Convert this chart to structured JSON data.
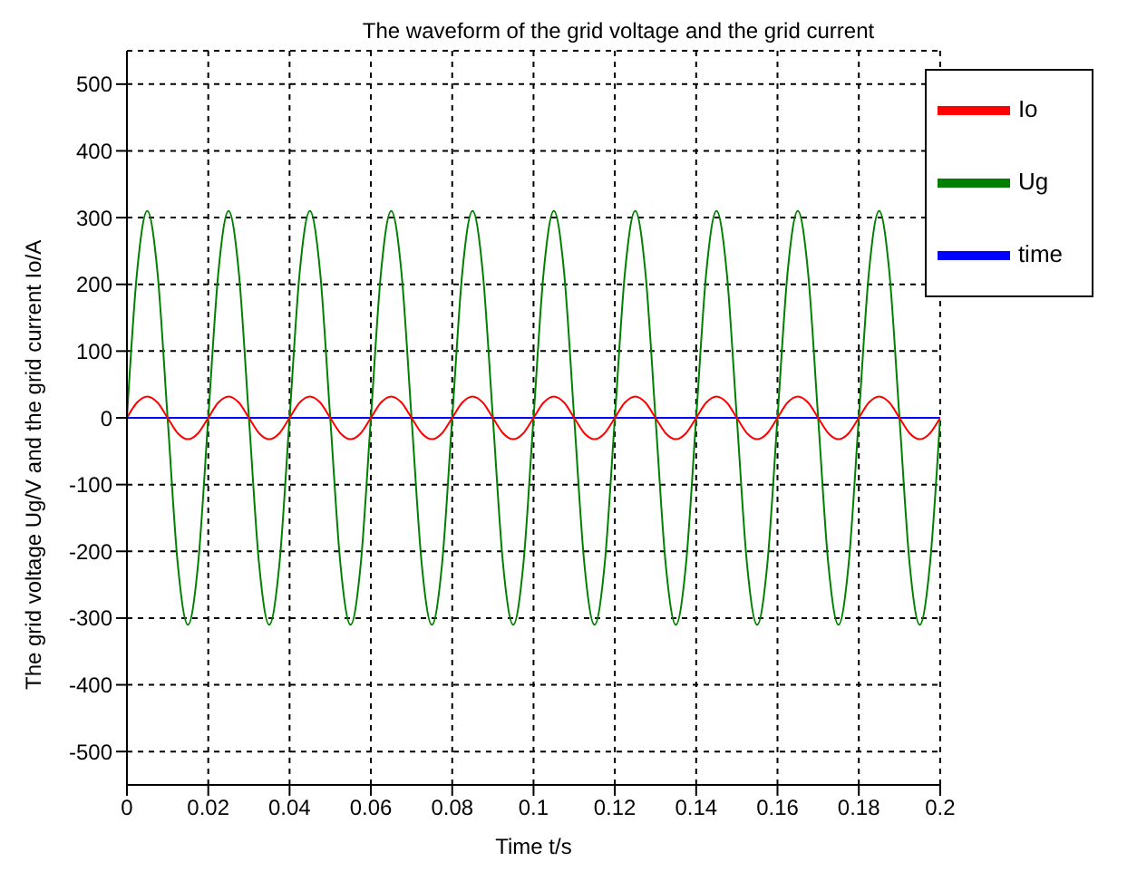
{
  "chart_data": {
    "type": "line",
    "title": "The waveform of the grid voltage and the grid current",
    "xlabel": "Time  t/s",
    "ylabel": "The grid voltage  Ug/V and the grid current Io/A",
    "x": [
      0,
      0.0025,
      0.005,
      0.0075,
      0.01,
      0.0125,
      0.015,
      0.0175,
      0.02,
      0.0225,
      0.025,
      0.0275,
      0.03,
      0.0325,
      0.035,
      0.0375,
      0.04,
      0.0425,
      0.045,
      0.0475,
      0.05,
      0.0525,
      0.055,
      0.0575,
      0.06,
      0.0625,
      0.065,
      0.0675,
      0.07,
      0.0725,
      0.075,
      0.0775,
      0.08,
      0.0825,
      0.085,
      0.0875,
      0.09,
      0.0925,
      0.095,
      0.0975,
      0.1,
      0.1025,
      0.105,
      0.1075,
      0.11,
      0.1125,
      0.115,
      0.1175,
      0.12,
      0.1225,
      0.125,
      0.1275,
      0.13,
      0.1325,
      0.135,
      0.1375,
      0.14,
      0.1425,
      0.145,
      0.1475,
      0.15,
      0.1525,
      0.155,
      0.1575,
      0.16,
      0.1625,
      0.165,
      0.1675,
      0.17,
      0.1725,
      0.175,
      0.1775,
      0.18,
      0.1825,
      0.185,
      0.1875,
      0.19,
      0.1925,
      0.195,
      0.1975,
      0.2
    ],
    "series": [
      {
        "name": "time",
        "color": "#0000ff",
        "x": [
          0,
          0.2
        ],
        "values": [
          0,
          0
        ]
      },
      {
        "name": "Ug",
        "color": "#008000",
        "values": [
          0,
          219,
          310,
          219,
          0,
          -219,
          -310,
          -219,
          0,
          219,
          310,
          219,
          0,
          -219,
          -310,
          -219,
          0,
          219,
          310,
          219,
          0,
          -219,
          -310,
          -219,
          0,
          219,
          310,
          219,
          0,
          -219,
          -310,
          -219,
          0,
          219,
          310,
          219,
          0,
          -219,
          -310,
          -219,
          0,
          219,
          310,
          219,
          0,
          -219,
          -310,
          -219,
          0,
          219,
          310,
          219,
          0,
          -219,
          -310,
          -219,
          0,
          219,
          310,
          219,
          0,
          -219,
          -310,
          -219,
          0,
          219,
          310,
          219,
          0,
          -219,
          -310,
          -219,
          0,
          219,
          310,
          219,
          0,
          -219,
          -310,
          -219,
          0
        ]
      },
      {
        "name": "Io",
        "color": "#ff0000",
        "values": [
          0,
          23,
          32,
          23,
          0,
          -23,
          -32,
          -23,
          0,
          23,
          32,
          23,
          0,
          -23,
          -32,
          -23,
          0,
          23,
          32,
          23,
          0,
          -23,
          -32,
          -23,
          0,
          23,
          32,
          23,
          0,
          -23,
          -32,
          -23,
          0,
          23,
          32,
          23,
          0,
          -23,
          -32,
          -23,
          0,
          23,
          32,
          23,
          0,
          -23,
          -32,
          -23,
          0,
          23,
          32,
          23,
          0,
          -23,
          -32,
          -23,
          0,
          23,
          32,
          23,
          0,
          -23,
          -32,
          -23,
          0,
          23,
          32,
          23,
          0,
          -23,
          -32,
          -23,
          0,
          23,
          32,
          23,
          0,
          -23,
          -32,
          -23,
          0
        ]
      }
    ],
    "xlim": [
      0,
      0.2
    ],
    "xticks": [
      0,
      0.02,
      0.04,
      0.06,
      0.08,
      0.1,
      0.12,
      0.14,
      0.16,
      0.18,
      0.2
    ],
    "ylim": [
      -550,
      550
    ],
    "yticks": [
      -500,
      -400,
      -300,
      -200,
      -100,
      0,
      100,
      200,
      300,
      400,
      500
    ],
    "grid": true,
    "legend": "top right",
    "line_style": "solid",
    "marker": "none"
  }
}
